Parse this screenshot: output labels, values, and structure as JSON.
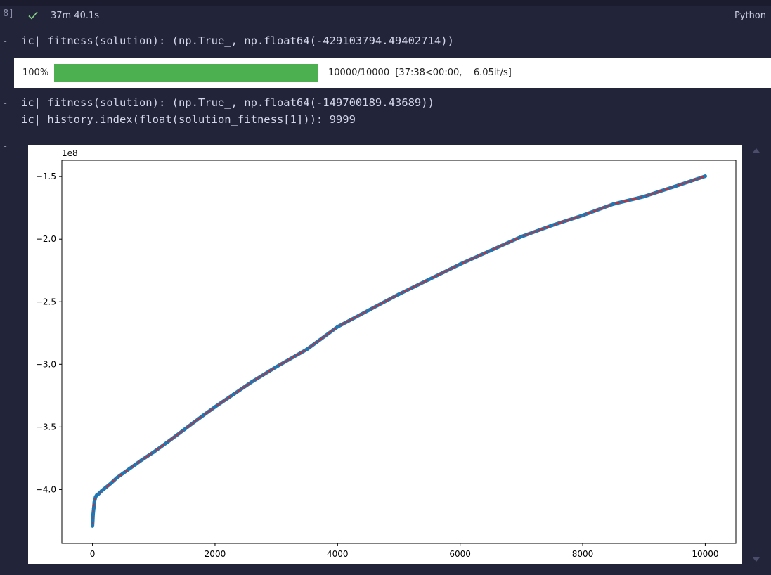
{
  "cell": {
    "exec_count": "8]",
    "duration": "37m 40.1s",
    "language": "Python"
  },
  "outputs": {
    "line1": "ic| fitness(solution): (np.True_, np.float64(-429103794.49402714))",
    "line2": "ic| fitness(solution): (np.True_, np.float64(-149700189.43689))",
    "line3": "ic| history.index(float(solution_fitness[1])): 9999"
  },
  "progress": {
    "percent_label": "100%",
    "fraction": 1.0,
    "stats": "10000/10000  [37:38<00:00,    6.05it/s]"
  },
  "colors": {
    "background": "#22243a",
    "progress_fill": "#4caf50",
    "series_points": "#1f77b4",
    "series_line": "#d62728"
  },
  "chart_data": {
    "type": "line",
    "y_offset_label": "1e8",
    "xlim": [
      -500,
      10500
    ],
    "ylim": [
      -4.43,
      -1.37
    ],
    "x_ticks": [
      0,
      2000,
      4000,
      6000,
      8000,
      10000
    ],
    "x_tick_labels": [
      "0",
      "2000",
      "4000",
      "6000",
      "8000",
      "10000"
    ],
    "y_ticks": [
      -4.0,
      -3.5,
      -3.0,
      -2.5,
      -2.0,
      -1.5
    ],
    "y_tick_labels": [
      "−4.0",
      "−3.5",
      "−3.0",
      "−2.5",
      "−2.0",
      "−1.5"
    ],
    "grid": false,
    "series": [
      {
        "x": [
          0,
          5,
          10,
          20,
          30,
          50,
          75,
          100,
          150,
          200,
          300,
          400,
          500,
          600,
          700,
          800,
          1000,
          1200,
          1500,
          1800,
          2000,
          2300,
          2600,
          3000,
          3500,
          4000,
          4500,
          5000,
          5500,
          6000,
          6500,
          7000,
          7500,
          8000,
          8500,
          9000,
          9500,
          10000
        ],
        "y": [
          -4.291,
          -4.25,
          -4.2,
          -4.15,
          -4.1,
          -4.06,
          -4.04,
          -4.035,
          -4.01,
          -3.99,
          -3.95,
          -3.905,
          -3.87,
          -3.835,
          -3.8,
          -3.765,
          -3.7,
          -3.63,
          -3.52,
          -3.41,
          -3.34,
          -3.24,
          -3.14,
          -3.02,
          -2.88,
          -2.7,
          -2.57,
          -2.44,
          -2.32,
          -2.2,
          -2.09,
          -1.98,
          -1.89,
          -1.81,
          -1.72,
          -1.66,
          -1.58,
          -1.497
        ]
      }
    ]
  }
}
